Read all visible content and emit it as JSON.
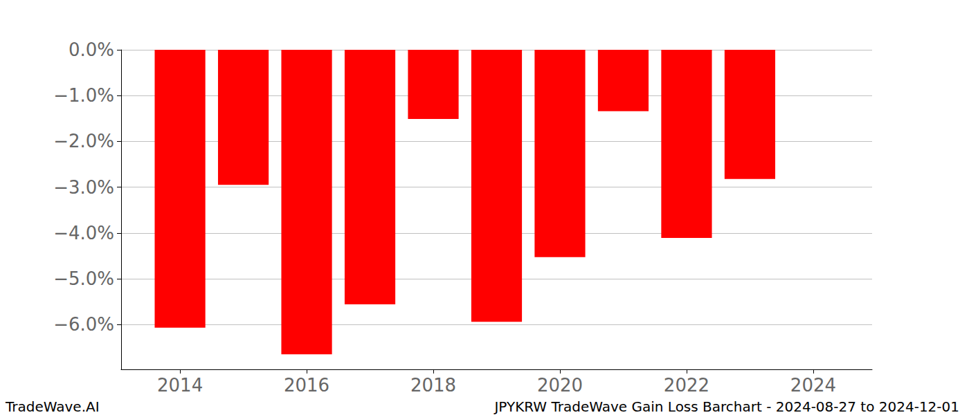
{
  "chart_data": {
    "type": "bar",
    "title": "JPYKRW TradeWave Gain Loss Barchart - 2024-08-27 to 2024-12-01",
    "annotations": [
      "TradeWave.AI"
    ],
    "x": [
      2014,
      2015,
      2016,
      2017,
      2018,
      2019,
      2020,
      2021,
      2022,
      2023
    ],
    "values": [
      -6.07,
      -2.95,
      -6.65,
      -5.56,
      -1.51,
      -5.94,
      -4.53,
      -1.34,
      -4.11,
      -2.82
    ],
    "color": "#ff0000",
    "xlim": [
      2013.07,
      2024.93
    ],
    "xticks": [
      2014,
      2016,
      2018,
      2020,
      2022,
      2024
    ],
    "ylim": [
      -6.98,
      0
    ],
    "yticks": [
      {
        "value": -6,
        "label": "−6.0%"
      },
      {
        "value": -5,
        "label": "−5.0%"
      },
      {
        "value": -4,
        "label": "−4.0%"
      },
      {
        "value": -3,
        "label": "−3.0%"
      },
      {
        "value": -2,
        "label": "−2.0%"
      },
      {
        "value": -1,
        "label": "−1.0%"
      },
      {
        "value": 0,
        "label": "0.0%"
      }
    ],
    "grid": true
  }
}
